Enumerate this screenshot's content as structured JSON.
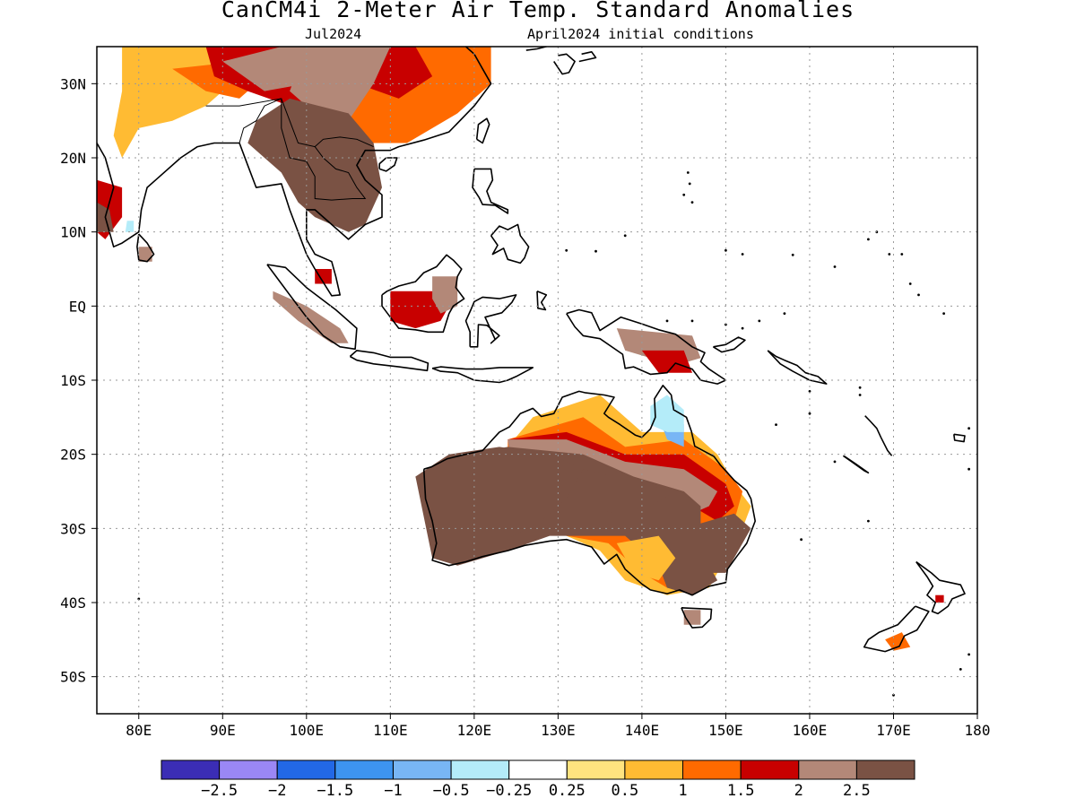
{
  "title": "CanCM4i 2-Meter Air Temp. Standard Anomalies",
  "subtitle_left": "Jul2024",
  "subtitle_right": "April2024 initial conditions",
  "map": {
    "lon_range": [
      75,
      180
    ],
    "lat_range": [
      -55,
      35
    ],
    "lon_ticks": [
      {
        "value": 80,
        "label": "80E"
      },
      {
        "value": 90,
        "label": "90E"
      },
      {
        "value": 100,
        "label": "100E"
      },
      {
        "value": 110,
        "label": "110E"
      },
      {
        "value": 120,
        "label": "120E"
      },
      {
        "value": 130,
        "label": "130E"
      },
      {
        "value": 140,
        "label": "140E"
      },
      {
        "value": 150,
        "label": "150E"
      },
      {
        "value": 160,
        "label": "160E"
      },
      {
        "value": 170,
        "label": "170E"
      },
      {
        "value": 180,
        "label": "180"
      }
    ],
    "lat_ticks": [
      {
        "value": 30,
        "label": "30N"
      },
      {
        "value": 20,
        "label": "20N"
      },
      {
        "value": 10,
        "label": "10N"
      },
      {
        "value": 0,
        "label": "EQ"
      },
      {
        "value": -10,
        "label": "10S"
      },
      {
        "value": -20,
        "label": "20S"
      },
      {
        "value": -30,
        "label": "30S"
      },
      {
        "value": -40,
        "label": "40S"
      },
      {
        "value": -50,
        "label": "50S"
      }
    ],
    "grid": true
  },
  "colorbar": {
    "colors": [
      "#3b2db5",
      "#9a87f5",
      "#2268e6",
      "#3d94f0",
      "#78b6f5",
      "#b4ecf9",
      "#ffffff",
      "#ffe37f",
      "#ffbb33",
      "#ff6a00",
      "#c80000",
      "#b38878",
      "#7a5244"
    ],
    "labels": [
      "−2.5",
      "−2",
      "−1.5",
      "−1",
      "−0.5",
      "−0.25",
      "0.25",
      "0.5",
      "1",
      "1.5",
      "2",
      "2.5"
    ]
  },
  "anomaly_regions": [
    {
      "name": "south-asia-north",
      "level": 0.5,
      "pts": [
        [
          78,
          35
        ],
        [
          90,
          35
        ],
        [
          92,
          31
        ],
        [
          88,
          27
        ],
        [
          84,
          25
        ],
        [
          80,
          24
        ],
        [
          78,
          20
        ],
        [
          77,
          23
        ],
        [
          78,
          29
        ]
      ]
    },
    {
      "name": "himalaya-orange",
      "level": 1,
      "pts": [
        [
          84,
          32
        ],
        [
          92,
          33
        ],
        [
          95,
          31
        ],
        [
          92,
          28
        ],
        [
          88,
          29
        ]
      ]
    },
    {
      "name": "tibet-red",
      "level": 1.5,
      "pts": [
        [
          88,
          35
        ],
        [
          107,
          35
        ],
        [
          108,
          31
        ],
        [
          104,
          28
        ],
        [
          98,
          27
        ],
        [
          93,
          29
        ],
        [
          89,
          31
        ]
      ]
    },
    {
      "name": "tibet-dark",
      "level": 2,
      "pts": [
        [
          90,
          33
        ],
        [
          97,
          35
        ],
        [
          104,
          35
        ],
        [
          100,
          30
        ],
        [
          95,
          29
        ]
      ]
    },
    {
      "name": "china-orange",
      "level": 1,
      "pts": [
        [
          104,
          35
        ],
        [
          122,
          35
        ],
        [
          122,
          30
        ],
        [
          118,
          26
        ],
        [
          112,
          22
        ],
        [
          106,
          22
        ],
        [
          104,
          28
        ]
      ]
    },
    {
      "name": "china-red",
      "level": 1.5,
      "pts": [
        [
          104,
          35
        ],
        [
          113,
          35
        ],
        [
          115,
          31
        ],
        [
          111,
          28
        ],
        [
          106,
          30
        ]
      ]
    },
    {
      "name": "china-brown",
      "level": 2,
      "pts": [
        [
          100,
          35
        ],
        [
          110,
          35
        ],
        [
          108,
          30
        ],
        [
          105,
          25
        ],
        [
          101,
          26
        ],
        [
          98,
          29
        ]
      ]
    },
    {
      "name": "indochina-dark",
      "level": 2.5,
      "pts": [
        [
          98,
          28
        ],
        [
          105,
          26
        ],
        [
          108,
          22
        ],
        [
          109,
          16
        ],
        [
          107,
          11
        ],
        [
          105,
          10
        ],
        [
          101,
          12
        ],
        [
          99,
          14
        ],
        [
          97,
          18
        ],
        [
          95,
          20
        ],
        [
          93,
          22
        ],
        [
          94,
          25
        ]
      ]
    },
    {
      "name": "india-west-coast",
      "level": 1.5,
      "pts": [
        [
          75,
          17
        ],
        [
          78,
          16
        ],
        [
          78,
          12
        ],
        [
          76,
          9
        ],
        [
          75,
          10
        ]
      ]
    },
    {
      "name": "india-west-dark",
      "level": 2.5,
      "pts": [
        [
          75,
          14
        ],
        [
          76.5,
          13
        ],
        [
          77,
          10
        ],
        [
          75,
          10
        ]
      ]
    },
    {
      "name": "india-blue",
      "level": -0.5,
      "pts": [
        [
          78.4,
          10
        ],
        [
          79.4,
          10
        ],
        [
          79.4,
          11.5
        ],
        [
          78.6,
          11.5
        ]
      ]
    },
    {
      "name": "sri-lanka",
      "level": 2,
      "pts": [
        [
          80,
          8
        ],
        [
          81.6,
          8
        ],
        [
          81.6,
          6
        ],
        [
          80,
          6
        ]
      ]
    },
    {
      "name": "borneo-red",
      "level": 1.5,
      "pts": [
        [
          110,
          2
        ],
        [
          115,
          2
        ],
        [
          117,
          0
        ],
        [
          116,
          -2
        ],
        [
          113,
          -3
        ],
        [
          110,
          -2
        ]
      ]
    },
    {
      "name": "borneo-brown",
      "level": 2,
      "pts": [
        [
          115,
          4
        ],
        [
          118,
          4
        ],
        [
          118,
          0
        ],
        [
          116,
          -1
        ],
        [
          115,
          1
        ]
      ]
    },
    {
      "name": "sumatra-brown",
      "level": 2,
      "pts": [
        [
          96,
          2
        ],
        [
          100,
          0
        ],
        [
          104,
          -3
        ],
        [
          105,
          -5
        ],
        [
          103,
          -5
        ],
        [
          99,
          -2
        ],
        [
          96,
          1
        ]
      ]
    },
    {
      "name": "malaysia-red",
      "level": 1.5,
      "pts": [
        [
          101,
          5
        ],
        [
          103,
          5
        ],
        [
          103,
          3
        ],
        [
          101,
          3
        ]
      ]
    },
    {
      "name": "png-brown",
      "level": 2,
      "pts": [
        [
          137,
          -3
        ],
        [
          146,
          -4
        ],
        [
          147,
          -7
        ],
        [
          144,
          -8
        ],
        [
          138,
          -6
        ]
      ]
    },
    {
      "name": "png-red",
      "level": 1.5,
      "pts": [
        [
          140,
          -6
        ],
        [
          145,
          -6
        ],
        [
          146,
          -9
        ],
        [
          142,
          -9
        ]
      ]
    },
    {
      "name": "australia-yellow",
      "level": 0.5,
      "pts": [
        [
          127,
          -15
        ],
        [
          135,
          -12
        ],
        [
          140,
          -17
        ],
        [
          146,
          -17
        ],
        [
          149,
          -20
        ],
        [
          151,
          -24
        ],
        [
          153,
          -27
        ],
        [
          152,
          -30
        ],
        [
          150,
          -34
        ],
        [
          148,
          -38
        ],
        [
          143,
          -39
        ],
        [
          138,
          -37
        ],
        [
          135,
          -33
        ],
        [
          131,
          -31
        ],
        [
          124,
          -26
        ],
        [
          124,
          -19
        ]
      ]
    },
    {
      "name": "australia-orange",
      "level": 1,
      "pts": [
        [
          124,
          -18
        ],
        [
          133,
          -15
        ],
        [
          138,
          -19
        ],
        [
          145,
          -18
        ],
        [
          150,
          -22
        ],
        [
          152,
          -25
        ],
        [
          151,
          -29
        ],
        [
          148,
          -30
        ],
        [
          146,
          -36
        ],
        [
          143,
          -38
        ],
        [
          140,
          -36
        ],
        [
          136,
          -32
        ],
        [
          131,
          -31
        ],
        [
          124,
          -27
        ]
      ]
    },
    {
      "name": "australia-deeporange",
      "level": 1.5,
      "pts": [
        [
          124,
          -18
        ],
        [
          131,
          -17
        ],
        [
          138,
          -20
        ],
        [
          145,
          -20
        ],
        [
          150,
          -24
        ],
        [
          151,
          -27
        ],
        [
          149,
          -29
        ],
        [
          146,
          -27
        ],
        [
          142,
          -28
        ],
        [
          139,
          -27
        ],
        [
          133,
          -27
        ],
        [
          125,
          -25
        ]
      ]
    },
    {
      "name": "australia-red",
      "level": 2,
      "pts": [
        [
          124,
          -18
        ],
        [
          131,
          -18
        ],
        [
          138,
          -21
        ],
        [
          145,
          -22
        ],
        [
          149,
          -25
        ],
        [
          148,
          -27
        ],
        [
          146,
          -28
        ],
        [
          143,
          -30
        ],
        [
          141,
          -32
        ],
        [
          138,
          -29
        ],
        [
          133,
          -28
        ],
        [
          125,
          -26
        ]
      ]
    },
    {
      "name": "australia-brown",
      "level": 2.5,
      "pts": [
        [
          113,
          -23
        ],
        [
          119,
          -20
        ],
        [
          124,
          -19
        ],
        [
          133,
          -20
        ],
        [
          139,
          -23
        ],
        [
          145,
          -25
        ],
        [
          147,
          -27
        ],
        [
          147,
          -33
        ],
        [
          149,
          -37
        ],
        [
          146,
          -39
        ],
        [
          143,
          -38
        ],
        [
          142,
          -35
        ],
        [
          138,
          -31
        ],
        [
          134,
          -31
        ],
        [
          129,
          -31
        ],
        [
          124,
          -33
        ],
        [
          118,
          -35
        ],
        [
          115,
          -34
        ]
      ]
    },
    {
      "name": "australia-west-dark",
      "level": 3,
      "pts": [
        [
          113,
          -23
        ],
        [
          117,
          -20
        ],
        [
          123,
          -19
        ],
        [
          129,
          -20
        ],
        [
          133,
          -22
        ],
        [
          131,
          -26
        ],
        [
          128,
          -29
        ],
        [
          123,
          -32
        ],
        [
          117,
          -34
        ],
        [
          115,
          -32
        ],
        [
          114,
          -27
        ]
      ]
    },
    {
      "name": "australia-east-dark",
      "level": 3,
      "pts": [
        [
          145,
          -30
        ],
        [
          151,
          -28
        ],
        [
          153,
          -30
        ],
        [
          150,
          -36
        ],
        [
          147,
          -36
        ]
      ]
    },
    {
      "name": "australia-center-dark",
      "level": 3,
      "pts": [
        [
          133,
          -22
        ],
        [
          140,
          -24
        ],
        [
          144,
          -25
        ],
        [
          141,
          -27
        ],
        [
          137,
          -28
        ],
        [
          133,
          -27
        ]
      ]
    },
    {
      "name": "australia-south-yellow",
      "level": 0.5,
      "pts": [
        [
          137,
          -32
        ],
        [
          142,
          -31
        ],
        [
          144,
          -34
        ],
        [
          142,
          -37
        ],
        [
          139,
          -36
        ]
      ]
    },
    {
      "name": "queensland-blue",
      "level": -1,
      "pts": [
        [
          142,
          -13
        ],
        [
          144,
          -13
        ],
        [
          145,
          -16
        ],
        [
          145,
          -19
        ],
        [
          143,
          -18
        ],
        [
          142,
          -15
        ]
      ]
    },
    {
      "name": "queensland-lightblue",
      "level": -0.5,
      "pts": [
        [
          141,
          -13.5
        ],
        [
          143,
          -12
        ],
        [
          145,
          -14
        ],
        [
          145,
          -17
        ],
        [
          143,
          -17
        ],
        [
          141,
          -16
        ]
      ]
    },
    {
      "name": "nz-orange",
      "level": 1,
      "pts": [
        [
          169,
          -45
        ],
        [
          171,
          -44
        ],
        [
          172,
          -46
        ],
        [
          170,
          -46.5
        ]
      ]
    },
    {
      "name": "nz-north-red",
      "level": 1.5,
      "pts": [
        [
          175,
          -39
        ],
        [
          176,
          -39
        ],
        [
          176,
          -40
        ],
        [
          175,
          -40
        ]
      ]
    },
    {
      "name": "tasmania",
      "level": 2,
      "pts": [
        [
          145,
          -41
        ],
        [
          147,
          -41
        ],
        [
          147,
          -43
        ],
        [
          145,
          -43
        ]
      ]
    }
  ]
}
